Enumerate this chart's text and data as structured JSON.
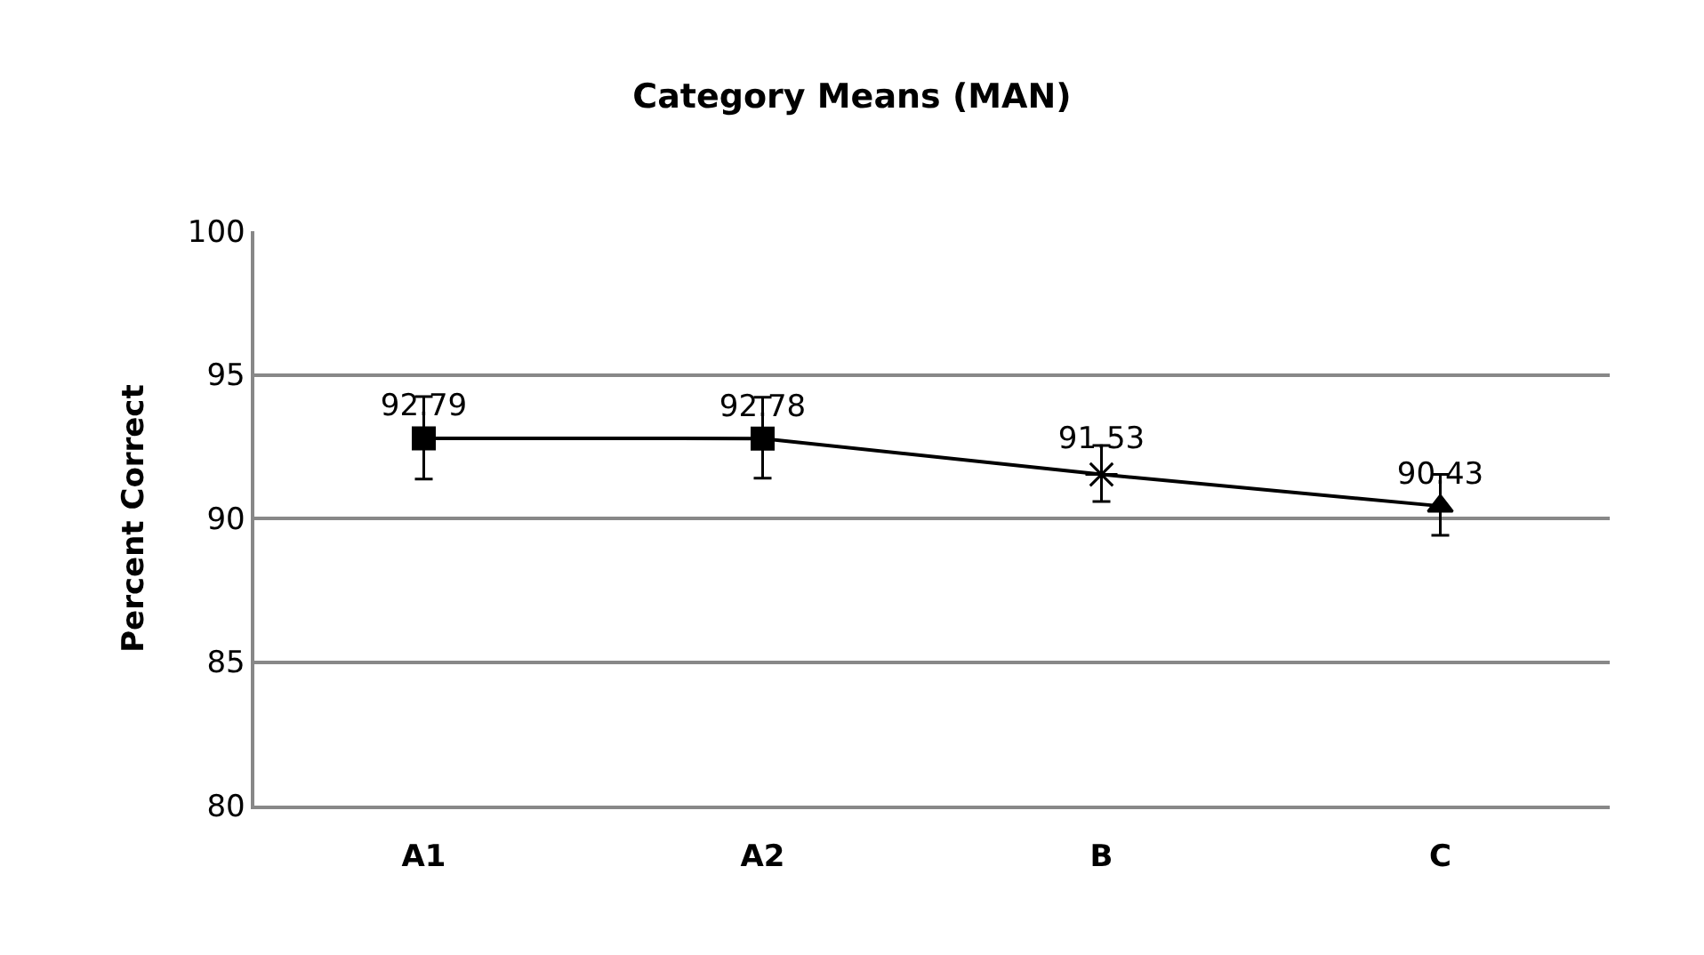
{
  "chart_data": {
    "type": "line",
    "title": "Category Means (MAN)",
    "ylabel": "Percent Correct",
    "categories": [
      "A1",
      "A2",
      "B",
      "C"
    ],
    "ylim": [
      80,
      100
    ],
    "yticks": [
      80,
      85,
      90,
      95,
      100
    ],
    "grid": "y",
    "series": [
      {
        "color": "#000000",
        "marker": "none",
        "line_style": "solid",
        "values": [
          92.79,
          92.78,
          91.53,
          90.43
        ]
      },
      {
        "type": "scatter",
        "color": "#000000",
        "marker": "square",
        "values": [
          92.79,
          92.78,
          null,
          null
        ],
        "errors": [
          [
            91.37,
            94.24
          ],
          [
            91.4,
            94.22
          ],
          null,
          null
        ],
        "value_labels": [
          "92.79",
          "92.78",
          null,
          null
        ]
      },
      {
        "type": "scatter",
        "color": "#000000",
        "marker": "cross",
        "values": [
          null,
          null,
          91.53,
          null
        ],
        "errors": [
          null,
          null,
          [
            90.59,
            92.54
          ],
          null
        ],
        "value_labels": [
          null,
          null,
          "91.53",
          null
        ]
      },
      {
        "type": "scatter",
        "color": "#000000",
        "marker": "triangle",
        "values": [
          null,
          null,
          null,
          90.43
        ],
        "errors": [
          null,
          null,
          null,
          [
            89.41,
            91.53
          ]
        ],
        "value_labels": [
          null,
          null,
          null,
          "90.43"
        ]
      }
    ]
  }
}
